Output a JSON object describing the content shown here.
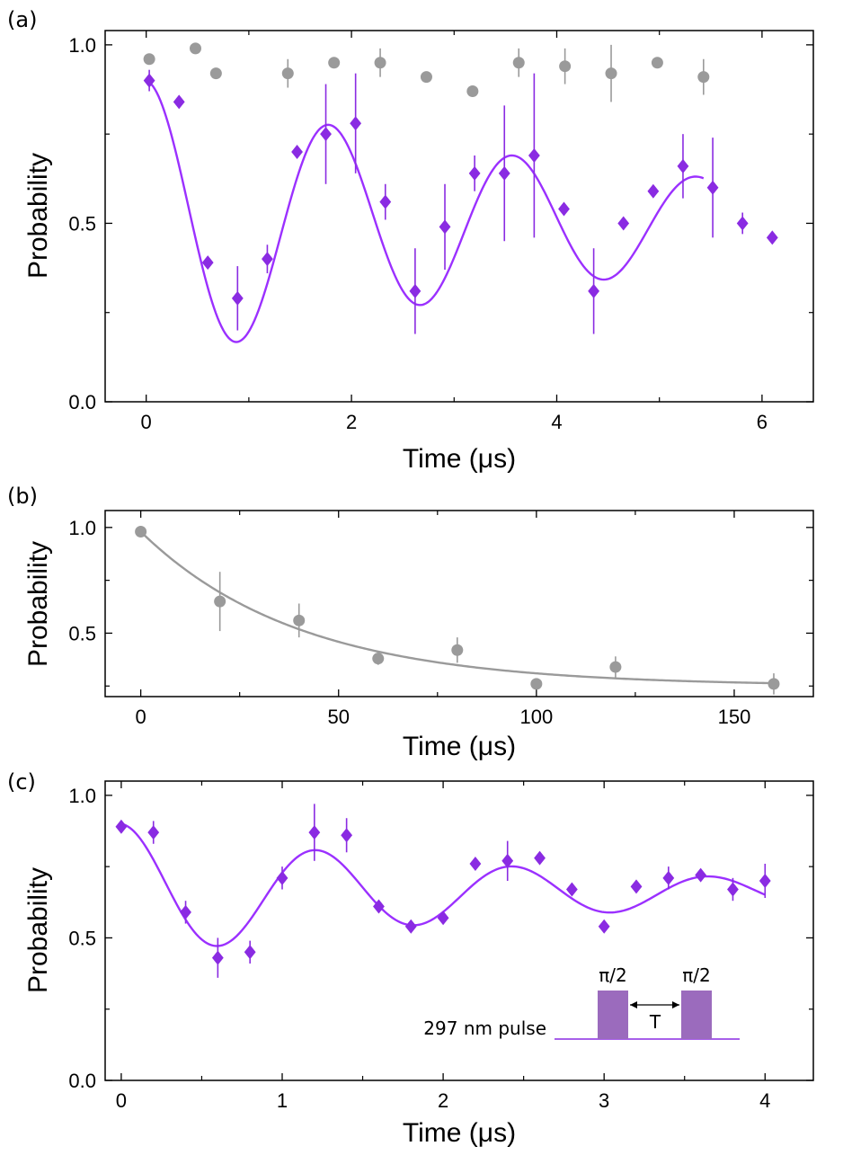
{
  "colors": {
    "purple": "#8a2be2",
    "purple_line": "#9b30ff",
    "gray": "#9a9a9a",
    "pulse_fill": "#9b6bbd",
    "axis": "#000000"
  },
  "chart_data": [
    {
      "panel_label": "(a)",
      "type": "scatter",
      "xlabel": "Time (μs)",
      "ylabel": "Probability",
      "xlim": [
        -0.4,
        6.5
      ],
      "ylim": [
        0.0,
        1.04
      ],
      "xticks": [
        0,
        2,
        4,
        6
      ],
      "xtick_labels": [
        "0",
        "2",
        "4",
        "6"
      ],
      "yticks": [
        0.0,
        0.5,
        1.0
      ],
      "ytick_labels": [
        "0.0",
        "0.5",
        "1.0"
      ],
      "minor_xticks": [
        1,
        3,
        5
      ],
      "minor_yticks": [
        0.25,
        0.75
      ],
      "series": [
        {
          "name": "gray circles",
          "marker": "circle",
          "color": "#9a9a9a",
          "x": [
            0.03,
            0.48,
            0.68,
            1.38,
            1.83,
            2.28,
            2.73,
            3.18,
            3.63,
            4.08,
            4.53,
            4.98,
            5.43
          ],
          "y": [
            0.96,
            0.99,
            0.92,
            0.92,
            0.95,
            0.95,
            0.91,
            0.87,
            0.95,
            0.94,
            0.92,
            0.95,
            0.91
          ],
          "err": [
            0.0,
            0.0,
            0.0,
            0.04,
            0.0,
            0.04,
            0.0,
            0.0,
            0.04,
            0.05,
            0.08,
            0.0,
            0.05
          ]
        },
        {
          "name": "purple diamonds",
          "marker": "diamond",
          "color": "#8a2be2",
          "x": [
            0.03,
            0.32,
            0.6,
            0.89,
            1.18,
            1.47,
            1.75,
            2.04,
            2.33,
            2.62,
            2.91,
            3.2,
            3.49,
            3.78,
            4.07,
            4.36,
            4.65,
            4.94,
            5.23,
            5.52,
            5.81,
            6.1
          ],
          "y": [
            0.9,
            0.84,
            0.39,
            0.29,
            0.4,
            0.7,
            0.75,
            0.78,
            0.56,
            0.31,
            0.49,
            0.64,
            0.64,
            0.69,
            0.54,
            0.31,
            0.5,
            0.59,
            0.66,
            0.6,
            0.5,
            0.46
          ],
          "err": [
            0.03,
            0.0,
            0.0,
            0.09,
            0.04,
            0.0,
            0.14,
            0.14,
            0.05,
            0.12,
            0.12,
            0.05,
            0.19,
            0.23,
            0.0,
            0.12,
            0.0,
            0.0,
            0.09,
            0.14,
            0.03,
            0.0
          ]
        },
        {
          "name": "fit",
          "type": "line",
          "color": "#9b30ff",
          "fit": {
            "kind": "damped_cos",
            "offset": 0.5,
            "amp": 0.4,
            "tau": 4.8,
            "period": 1.79,
            "phase": 0.0
          }
        }
      ]
    },
    {
      "panel_label": "(b)",
      "type": "scatter",
      "xlabel": "Time (μs)",
      "ylabel": "Probability",
      "xlim": [
        -9,
        170
      ],
      "ylim": [
        0.2,
        1.08
      ],
      "xticks": [
        0,
        50,
        100,
        150
      ],
      "xtick_labels": [
        "0",
        "50",
        "100",
        "150"
      ],
      "yticks": [
        0.5,
        1.0
      ],
      "ytick_labels": [
        "0.5",
        "1.0"
      ],
      "minor_xticks": [
        25,
        75,
        125
      ],
      "minor_yticks": [
        0.25,
        0.75
      ],
      "series": [
        {
          "name": "gray circles",
          "marker": "circle",
          "color": "#9a9a9a",
          "x": [
            0,
            20,
            40,
            60,
            80,
            100,
            120,
            160
          ],
          "y": [
            0.98,
            0.65,
            0.56,
            0.38,
            0.42,
            0.26,
            0.34,
            0.26
          ],
          "err": [
            0.0,
            0.14,
            0.08,
            0.03,
            0.06,
            0.0,
            0.05,
            0.05
          ]
        },
        {
          "name": "fit",
          "type": "line",
          "color": "#9a9a9a",
          "fit": {
            "kind": "exp_decay",
            "offset": 0.25,
            "amp": 0.73,
            "tau": 40
          }
        }
      ]
    },
    {
      "panel_label": "(c)",
      "type": "scatter",
      "xlabel": "Time (μs)",
      "ylabel": "Probability",
      "xlim": [
        -0.1,
        4.3
      ],
      "ylim": [
        0.0,
        1.05
      ],
      "xticks": [
        0,
        1,
        2,
        3,
        4
      ],
      "xtick_labels": [
        "0",
        "1",
        "2",
        "3",
        "4"
      ],
      "yticks": [
        0.0,
        0.5,
        1.0
      ],
      "ytick_labels": [
        "0.0",
        "0.5",
        "1.0"
      ],
      "minor_xticks": [
        0.5,
        1.5,
        2.5,
        3.5
      ],
      "minor_yticks": [
        0.25,
        0.75
      ],
      "series": [
        {
          "name": "purple diamonds",
          "marker": "diamond",
          "color": "#8a2be2",
          "x": [
            0.0,
            0.2,
            0.4,
            0.6,
            0.8,
            1.0,
            1.2,
            1.4,
            1.6,
            1.8,
            2.0,
            2.2,
            2.4,
            2.6,
            2.8,
            3.0,
            3.2,
            3.4,
            3.6,
            3.8,
            4.0
          ],
          "y": [
            0.89,
            0.87,
            0.59,
            0.43,
            0.45,
            0.71,
            0.87,
            0.86,
            0.61,
            0.54,
            0.57,
            0.76,
            0.77,
            0.78,
            0.67,
            0.54,
            0.68,
            0.71,
            0.72,
            0.67,
            0.7
          ],
          "err": [
            0.0,
            0.04,
            0.04,
            0.07,
            0.04,
            0.04,
            0.1,
            0.06,
            0.0,
            0.0,
            0.0,
            0.0,
            0.07,
            0.0,
            0.0,
            0.0,
            0.0,
            0.04,
            0.0,
            0.04,
            0.06
          ]
        },
        {
          "name": "fit",
          "type": "line",
          "color": "#9b30ff",
          "fit": {
            "kind": "damped_cos",
            "offset": 0.66,
            "amp": 0.24,
            "tau": 2.5,
            "period": 1.22,
            "phase": 0.0
          }
        }
      ],
      "inset": {
        "pulse_label_1": "π/2",
        "pulse_label_2": "π/2",
        "gap_label": "T",
        "baseline_label": "297 nm pulse"
      }
    }
  ]
}
